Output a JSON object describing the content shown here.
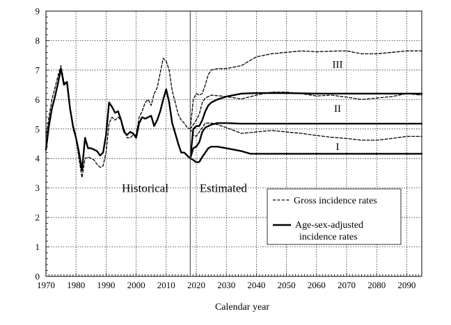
{
  "chart_data": {
    "type": "line",
    "title": "",
    "xlabel": "Calendar year",
    "ylabel": "",
    "xlim": [
      1970,
      2095
    ],
    "ylim": [
      0,
      9
    ],
    "x_ticks": [
      1970,
      1980,
      1990,
      2000,
      2010,
      2020,
      2030,
      2040,
      2050,
      2060,
      2070,
      2080,
      2090
    ],
    "y_ticks": [
      0,
      1,
      2,
      3,
      4,
      5,
      6,
      7,
      8,
      9
    ],
    "grid": true,
    "divider_year": 2018,
    "region_labels": [
      {
        "text": "Historical",
        "x": 2003,
        "y": 3.0
      },
      {
        "text": "Estimated",
        "x": 2029,
        "y": 3.0
      }
    ],
    "scenario_labels": [
      {
        "text": "III",
        "x": 2067,
        "y": 7.2
      },
      {
        "text": "II",
        "x": 2067,
        "y": 5.7
      },
      {
        "text": "I",
        "x": 2067,
        "y": 4.4
      }
    ],
    "legend": {
      "placement": "bottom-right",
      "items": [
        {
          "label": "Gross incidence rates",
          "style": "dashed"
        },
        {
          "label": "Age-sex-adjusted incidence rates",
          "style": "solid"
        }
      ]
    },
    "series": [
      {
        "group": "gross",
        "style": "dashed",
        "points": [
          [
            1970,
            4.7
          ],
          [
            1971,
            5.4
          ],
          [
            1972,
            6.0
          ],
          [
            1973,
            6.4
          ],
          [
            1974,
            6.8
          ],
          [
            1975,
            7.15
          ],
          [
            1976,
            6.6
          ],
          [
            1977,
            6.5
          ],
          [
            1978,
            5.7
          ],
          [
            1979,
            5.0
          ],
          [
            1980,
            4.7
          ],
          [
            1981,
            4.0
          ],
          [
            1982,
            3.35
          ],
          [
            1983,
            4.0
          ],
          [
            1984,
            4.05
          ],
          [
            1985,
            4.0
          ],
          [
            1986,
            3.95
          ],
          [
            1987,
            3.8
          ],
          [
            1988,
            3.7
          ],
          [
            1989,
            3.75
          ],
          [
            1990,
            4.2
          ],
          [
            1991,
            5.2
          ],
          [
            1992,
            5.4
          ],
          [
            1993,
            5.3
          ],
          [
            1994,
            5.4
          ],
          [
            1995,
            5.3
          ],
          [
            1996,
            5.0
          ],
          [
            1997,
            4.7
          ],
          [
            1998,
            4.7
          ],
          [
            1999,
            4.8
          ],
          [
            2000,
            4.8
          ],
          [
            2001,
            5.4
          ],
          [
            2002,
            5.6
          ],
          [
            2003,
            5.9
          ],
          [
            2004,
            6.0
          ],
          [
            2005,
            5.8
          ],
          [
            2006,
            6.2
          ],
          [
            2007,
            6.4
          ],
          [
            2008,
            6.9
          ],
          [
            2009,
            7.4
          ],
          [
            2010,
            7.3
          ],
          [
            2011,
            7.0
          ],
          [
            2012,
            6.3
          ],
          [
            2013,
            5.9
          ],
          [
            2014,
            5.5
          ],
          [
            2015,
            5.3
          ],
          [
            2016,
            5.2
          ],
          [
            2017,
            5.05
          ],
          [
            2018,
            5.0
          ]
        ]
      },
      {
        "group": "adjusted",
        "style": "solid",
        "points": [
          [
            1970,
            4.3
          ],
          [
            1971,
            5.1
          ],
          [
            1972,
            5.7
          ],
          [
            1973,
            6.1
          ],
          [
            1974,
            6.55
          ],
          [
            1975,
            7.05
          ],
          [
            1976,
            6.5
          ],
          [
            1977,
            6.6
          ],
          [
            1978,
            5.7
          ],
          [
            1979,
            5.1
          ],
          [
            1980,
            4.7
          ],
          [
            1981,
            4.2
          ],
          [
            1982,
            3.6
          ],
          [
            1983,
            4.7
          ],
          [
            1984,
            4.35
          ],
          [
            1985,
            4.35
          ],
          [
            1986,
            4.3
          ],
          [
            1987,
            4.25
          ],
          [
            1988,
            4.1
          ],
          [
            1989,
            4.2
          ],
          [
            1990,
            4.8
          ],
          [
            1991,
            5.9
          ],
          [
            1992,
            5.75
          ],
          [
            1993,
            5.55
          ],
          [
            1994,
            5.6
          ],
          [
            1995,
            5.3
          ],
          [
            1996,
            4.9
          ],
          [
            1997,
            4.8
          ],
          [
            1998,
            4.9
          ],
          [
            1999,
            4.85
          ],
          [
            2000,
            4.7
          ],
          [
            2001,
            5.2
          ],
          [
            2002,
            5.4
          ],
          [
            2003,
            5.35
          ],
          [
            2004,
            5.4
          ],
          [
            2005,
            5.45
          ],
          [
            2006,
            5.1
          ],
          [
            2007,
            5.3
          ],
          [
            2008,
            5.6
          ],
          [
            2009,
            6.0
          ],
          [
            2010,
            6.35
          ],
          [
            2011,
            5.9
          ],
          [
            2012,
            5.2
          ],
          [
            2013,
            4.85
          ],
          [
            2014,
            4.5
          ],
          [
            2015,
            4.2
          ],
          [
            2016,
            4.2
          ],
          [
            2017,
            4.1
          ],
          [
            2018,
            4.0
          ]
        ]
      },
      {
        "group": "gross",
        "scenario": "III",
        "style": "dashed",
        "points": [
          [
            2018,
            5.0
          ],
          [
            2019,
            6.0
          ],
          [
            2020,
            6.2
          ],
          [
            2021,
            6.15
          ],
          [
            2022,
            6.2
          ],
          [
            2023,
            6.5
          ],
          [
            2024,
            6.85
          ],
          [
            2025,
            7.0
          ],
          [
            2027,
            7.05
          ],
          [
            2030,
            7.05
          ],
          [
            2035,
            7.15
          ],
          [
            2040,
            7.45
          ],
          [
            2045,
            7.55
          ],
          [
            2050,
            7.6
          ],
          [
            2055,
            7.65
          ],
          [
            2060,
            7.62
          ],
          [
            2065,
            7.64
          ],
          [
            2070,
            7.65
          ],
          [
            2075,
            7.55
          ],
          [
            2080,
            7.55
          ],
          [
            2085,
            7.6
          ],
          [
            2090,
            7.65
          ],
          [
            2095,
            7.65
          ]
        ]
      },
      {
        "group": "gross",
        "scenario": "II",
        "style": "dashed",
        "points": [
          [
            2018,
            5.0
          ],
          [
            2019,
            5.15
          ],
          [
            2020,
            5.3
          ],
          [
            2021,
            5.5
          ],
          [
            2022,
            5.9
          ],
          [
            2023,
            6.05
          ],
          [
            2025,
            6.15
          ],
          [
            2028,
            6.12
          ],
          [
            2030,
            6.1
          ],
          [
            2035,
            6.02
          ],
          [
            2040,
            6.15
          ],
          [
            2045,
            6.25
          ],
          [
            2050,
            6.25
          ],
          [
            2055,
            6.2
          ],
          [
            2060,
            6.12
          ],
          [
            2065,
            6.15
          ],
          [
            2070,
            6.08
          ],
          [
            2075,
            6.0
          ],
          [
            2080,
            6.05
          ],
          [
            2085,
            6.1
          ],
          [
            2090,
            6.2
          ],
          [
            2095,
            6.15
          ]
        ]
      },
      {
        "group": "gross",
        "scenario": "I",
        "style": "dashed",
        "points": [
          [
            2018,
            5.0
          ],
          [
            2019,
            4.8
          ],
          [
            2020,
            4.75
          ],
          [
            2021,
            4.9
          ],
          [
            2022,
            5.05
          ],
          [
            2023,
            5.2
          ],
          [
            2025,
            5.2
          ],
          [
            2027,
            5.15
          ],
          [
            2030,
            5.05
          ],
          [
            2035,
            4.85
          ],
          [
            2040,
            4.9
          ],
          [
            2045,
            4.95
          ],
          [
            2050,
            4.9
          ],
          [
            2055,
            4.85
          ],
          [
            2060,
            4.78
          ],
          [
            2065,
            4.72
          ],
          [
            2070,
            4.68
          ],
          [
            2075,
            4.62
          ],
          [
            2080,
            4.62
          ],
          [
            2085,
            4.68
          ],
          [
            2090,
            4.75
          ],
          [
            2095,
            4.75
          ]
        ]
      },
      {
        "group": "adjusted",
        "scenario": "III",
        "style": "solid",
        "points": [
          [
            2018,
            4.0
          ],
          [
            2019,
            5.0
          ],
          [
            2020,
            5.1
          ],
          [
            2021,
            5.1
          ],
          [
            2022,
            5.3
          ],
          [
            2023,
            5.6
          ],
          [
            2024,
            5.8
          ],
          [
            2025,
            5.9
          ],
          [
            2027,
            6.0
          ],
          [
            2030,
            6.1
          ],
          [
            2035,
            6.2
          ],
          [
            2040,
            6.22
          ],
          [
            2045,
            6.22
          ],
          [
            2050,
            6.22
          ],
          [
            2060,
            6.2
          ],
          [
            2070,
            6.2
          ],
          [
            2080,
            6.2
          ],
          [
            2090,
            6.2
          ],
          [
            2095,
            6.2
          ]
        ]
      },
      {
        "group": "adjusted",
        "scenario": "II",
        "style": "solid",
        "points": [
          [
            2018,
            4.0
          ],
          [
            2019,
            4.35
          ],
          [
            2020,
            4.4
          ],
          [
            2021,
            4.55
          ],
          [
            2022,
            4.9
          ],
          [
            2023,
            5.05
          ],
          [
            2025,
            5.15
          ],
          [
            2027,
            5.2
          ],
          [
            2030,
            5.2
          ],
          [
            2035,
            5.18
          ],
          [
            2040,
            5.18
          ],
          [
            2050,
            5.18
          ],
          [
            2060,
            5.18
          ],
          [
            2070,
            5.18
          ],
          [
            2080,
            5.18
          ],
          [
            2090,
            5.18
          ],
          [
            2095,
            5.18
          ]
        ]
      },
      {
        "group": "adjusted",
        "scenario": "I",
        "style": "solid",
        "points": [
          [
            2018,
            4.0
          ],
          [
            2019,
            3.95
          ],
          [
            2020,
            3.87
          ],
          [
            2021,
            3.88
          ],
          [
            2022,
            4.05
          ],
          [
            2023,
            4.2
          ],
          [
            2024,
            4.35
          ],
          [
            2025,
            4.4
          ],
          [
            2027,
            4.4
          ],
          [
            2030,
            4.35
          ],
          [
            2035,
            4.25
          ],
          [
            2038,
            4.16
          ],
          [
            2040,
            4.16
          ],
          [
            2050,
            4.16
          ],
          [
            2060,
            4.16
          ],
          [
            2070,
            4.16
          ],
          [
            2080,
            4.16
          ],
          [
            2090,
            4.16
          ],
          [
            2095,
            4.16
          ]
        ]
      }
    ]
  }
}
